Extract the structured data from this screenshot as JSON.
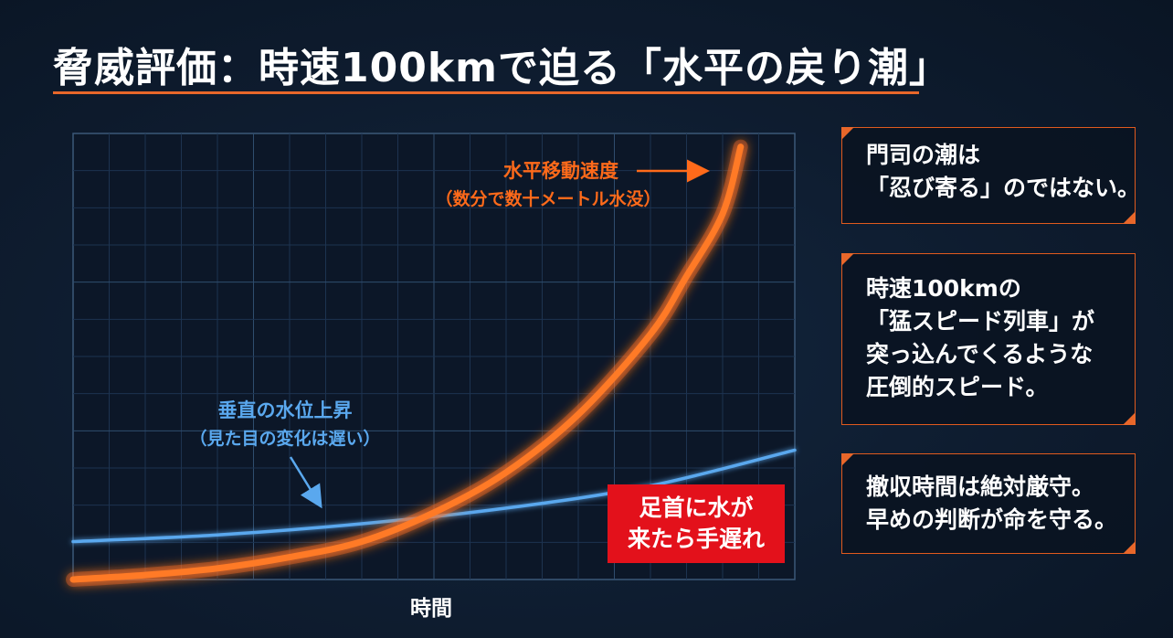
{
  "title": "脅威評価：時速100kmで迫る「水平の戻り潮」",
  "colors": {
    "accent_orange": "#ff6a1a",
    "vertical_blue": "#5aa8ee",
    "warning_red": "#e3111b",
    "grid": "#2a4563"
  },
  "chart_data": {
    "type": "line",
    "xlabel": "時間",
    "ylabel": "",
    "series": [
      {
        "name": "水平移動速度",
        "color": "#ff6a1a",
        "x": [
          0,
          10,
          20,
          30,
          40,
          50,
          60,
          70,
          80,
          85,
          90,
          92.5
        ],
        "y": [
          0,
          1,
          2.5,
          5,
          8.5,
          15,
          24,
          37,
          55,
          68,
          82,
          97
        ]
      },
      {
        "name": "垂直の水位上昇",
        "color": "#5aa8ee",
        "x": [
          0,
          20,
          40,
          60,
          80,
          100
        ],
        "y": [
          8.5,
          10,
          12.5,
          16,
          21,
          29
        ]
      }
    ],
    "annotations": {
      "horizontal_label": "水平移動速度",
      "horizontal_sub": "（数分で数十メートル水没）",
      "vertical_label": "垂直の水位上昇",
      "vertical_sub": "（見た目の変化は遅い）",
      "warning_line1": "足首に水が",
      "warning_line2": "来たら手遅れ"
    },
    "grid": true,
    "xlim": [
      0,
      100
    ],
    "ylim": [
      0,
      100
    ]
  },
  "callouts": [
    {
      "lines": [
        "門司の潮は",
        "「忍び寄る」のではない。"
      ]
    },
    {
      "lines": [
        "時速100kmの",
        "「猛スピード列車」が",
        "突っ込んでくるような",
        "圧倒的スピード。"
      ]
    },
    {
      "lines": [
        "撤収時間は絶対厳守。",
        "早めの判断が命を守る。"
      ]
    }
  ]
}
